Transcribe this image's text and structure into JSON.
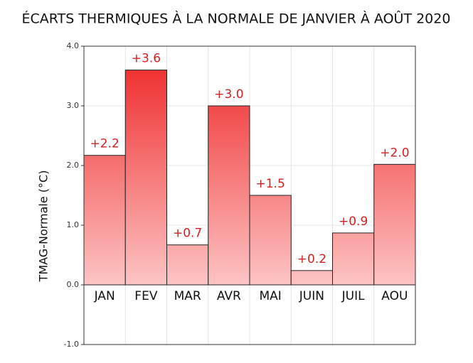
{
  "chart_data": {
    "type": "bar",
    "title": "ÉCARTS THERMIQUES À LA NORMALE DE JANVIER À AOÛT 2020",
    "y_label": "TMAG-Normale (°C)",
    "categories": [
      "JAN",
      "FEV",
      "MAR",
      "AVR",
      "MAI",
      "JUIN",
      "JUIL",
      "AOU"
    ],
    "values": [
      2.17,
      3.6,
      0.67,
      3.0,
      1.5,
      0.24,
      0.87,
      2.02
    ],
    "value_labels": [
      "+2.2",
      "+3.6",
      "+0.7",
      "+3.0",
      "+1.5",
      "+0.2",
      "+0.9",
      "+2.0"
    ],
    "color": "#ee2222",
    "ylim": [
      -1,
      4
    ],
    "yticks": [
      {
        "value": -1,
        "label": "-1.0"
      },
      {
        "value": 0,
        "label": "0.0"
      },
      {
        "value": 1,
        "label": "1.0"
      },
      {
        "value": 2,
        "label": "2.0"
      },
      {
        "value": 3,
        "label": "3.0"
      },
      {
        "value": 4,
        "label": "4.0"
      }
    ],
    "grid": true
  }
}
